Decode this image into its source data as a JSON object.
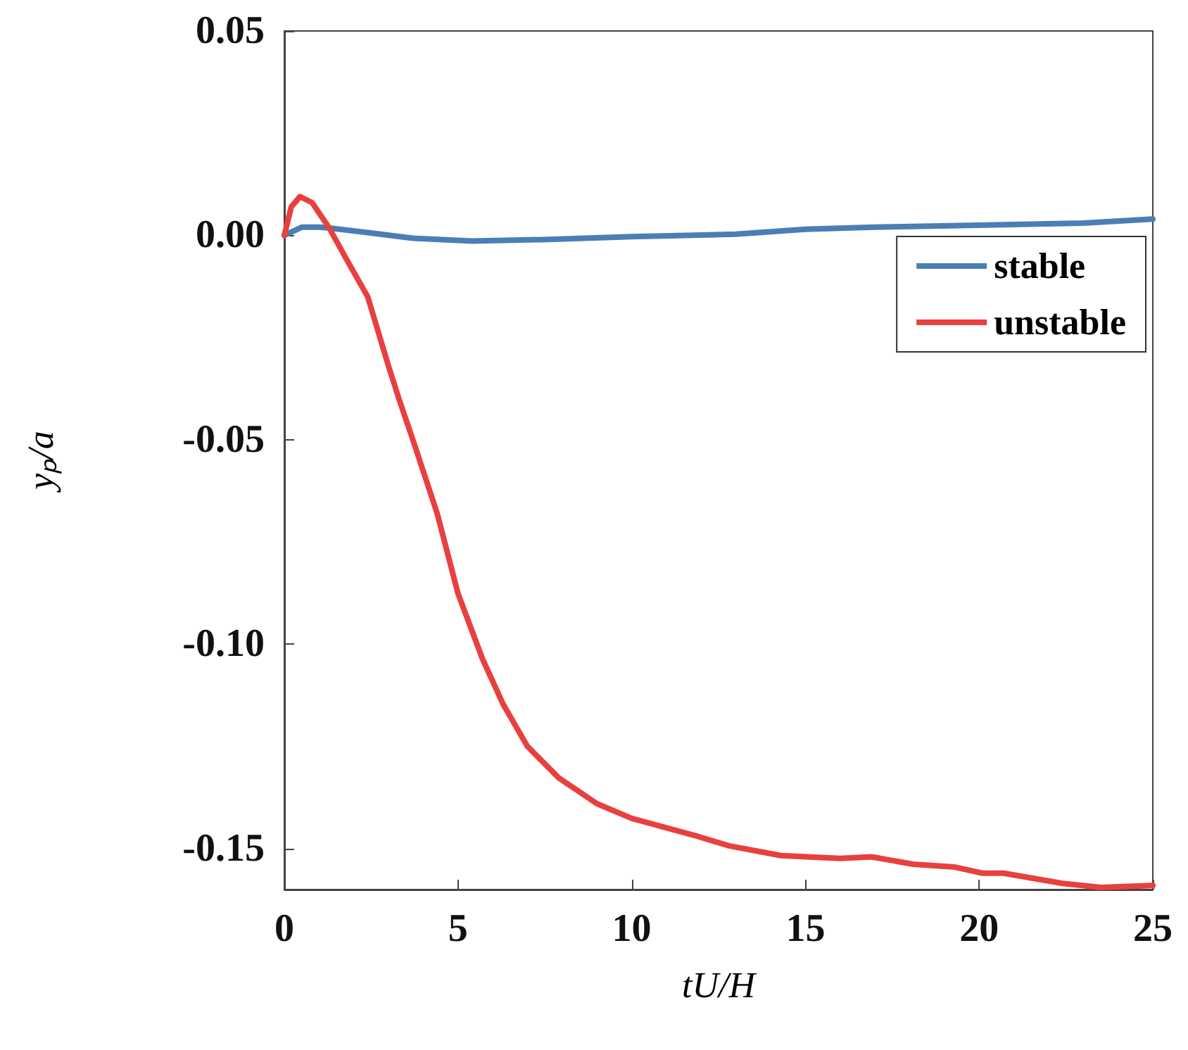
{
  "chart_data": {
    "type": "line",
    "xlabel": "tU/H",
    "ylabel": "yₚ/a",
    "xlim": [
      0,
      25
    ],
    "xticks": [
      0,
      5,
      10,
      15,
      20,
      25
    ],
    "ylim": [
      -0.16,
      0.05
    ],
    "yticks": [
      0.05,
      {
        "value": 0,
        "label": "0.00"
      },
      -0.05,
      {
        "value": -0.1,
        "label": "-0.10"
      },
      -0.15
    ],
    "grid": false,
    "legend": "top right",
    "marker": "none",
    "line_style": "solid",
    "series": [
      {
        "name": "stable",
        "color": "#4a7fb5",
        "x": [
          0,
          0.5,
          1,
          1.3,
          2.4,
          3.7,
          5.4,
          7.6,
          10,
          13,
          15,
          17,
          20,
          23,
          25
        ],
        "values": [
          0,
          0.002,
          0.002,
          0.0018,
          0.0007,
          -0.0007,
          -0.0014,
          -0.001,
          -0.0003,
          0.0003,
          0.0015,
          0.002,
          0.0025,
          0.003,
          0.004
        ]
      },
      {
        "name": "unstable",
        "color": "#e8403f",
        "x": [
          0,
          0.2,
          0.45,
          0.8,
          1.3,
          1.8,
          2.4,
          3,
          3.3,
          3.7,
          4.4,
          5,
          5.7,
          6.3,
          7,
          7.9,
          9,
          10,
          11.9,
          12.8,
          14.3,
          16,
          16.9,
          18.1,
          19.3,
          20.1,
          20.7,
          22.4,
          23.5,
          25
        ],
        "values": [
          0,
          0.007,
          0.0095,
          0.008,
          0.0017,
          -0.006,
          -0.015,
          -0.032,
          -0.04,
          -0.05,
          -0.068,
          -0.0876,
          -0.1035,
          -0.1147,
          -0.125,
          -0.1327,
          -0.139,
          -0.1426,
          -0.147,
          -0.1493,
          -0.1517,
          -0.1524,
          -0.152,
          -0.1538,
          -0.1545,
          -0.156,
          -0.156,
          -0.1585,
          -0.1595,
          -0.159
        ]
      }
    ]
  }
}
